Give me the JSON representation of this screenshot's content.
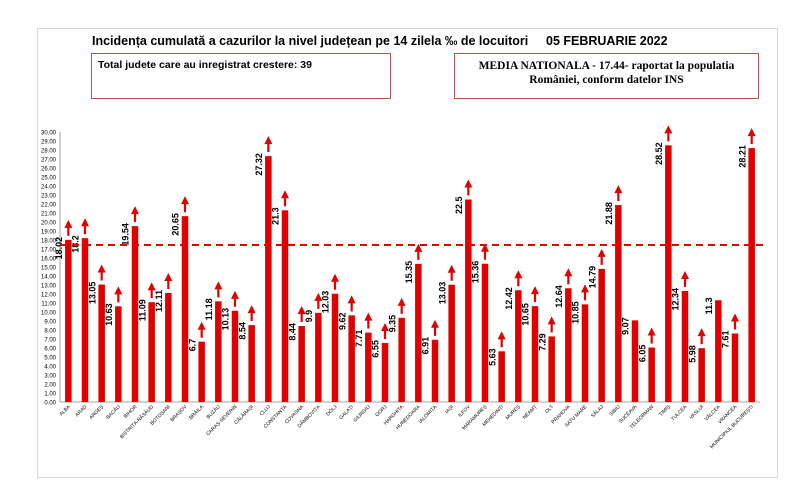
{
  "title": "Incidența cumulată a cazurilor la nivel județean pe 14 zilela ‰ de locuitori",
  "date": "05 FEBRUARIE 2022",
  "box_left": "Total judete care au inregistrat crestere: 39",
  "box_right_line1": "MEDIA NATIONALA - 17.44-  raportat la populatia",
  "box_right_line2": "României, conform datelor INS",
  "colors": {
    "bar": "#e00000",
    "reference_line": "#e00000",
    "box_border": "#c0504d"
  },
  "chart_data": {
    "type": "bar",
    "categories": [
      "ALBA",
      "ARAD",
      "ARGEȘ",
      "BACĂU",
      "BIHOR",
      "BISTRIȚA-NĂSĂUD",
      "BOTOȘANI",
      "BRAȘOV",
      "BRĂILA",
      "BUZĂU",
      "CARAȘ-SEVERIN",
      "CĂLĂRAȘI",
      "CLUJ",
      "CONSTANȚA",
      "COVASNA",
      "DÂMBOVIȚA",
      "DOLJ",
      "GALAȚI",
      "GIURGIU",
      "GORJ",
      "HARGHITA",
      "HUNEDOARA",
      "IALOMIȚA",
      "IAȘI",
      "ILFOV",
      "MARAMUREȘ",
      "MEHEDINȚI",
      "MUREȘ",
      "NEAMȚ",
      "OLT",
      "PRAHOVA",
      "SATU MARE",
      "SĂLAJ",
      "SIBIU",
      "SUCEAVA",
      "TELEORMAN",
      "TIMIȘ",
      "TULCEA",
      "VASLUI",
      "VÂLCEA",
      "VRANCEA",
      "MUNICIPIUL BUCUREȘTI"
    ],
    "values": [
      18.02,
      18.2,
      13.05,
      10.63,
      19.54,
      11.09,
      12.11,
      20.65,
      6.7,
      11.18,
      10.13,
      8.54,
      27.32,
      21.3,
      8.44,
      9.9,
      12.03,
      9.62,
      7.71,
      6.55,
      9.35,
      15.35,
      6.91,
      13.03,
      22.5,
      15.36,
      5.63,
      12.42,
      10.65,
      7.29,
      12.64,
      10.85,
      14.79,
      21.88,
      9.07,
      6.05,
      28.52,
      12.34,
      5.98,
      11.3,
      7.61,
      28.21
    ],
    "labels": [
      "18.02",
      "18.2",
      "13.05",
      "10.63",
      "19.54",
      "11.09",
      "12.11",
      "20.65",
      "6.7",
      "11.18",
      "10.13",
      "8.54",
      "27.32",
      "21.3",
      "8.44",
      "9.9",
      "12.03",
      "9.62",
      "7.71",
      "6.55",
      "9.35",
      "15.35",
      "6.91",
      "13.03",
      "22.5",
      "15.36",
      "5.63",
      "12.42",
      "10.65",
      "7.29",
      "12.64",
      "10.85",
      "14.79",
      "21.88",
      "9.07",
      "6.05",
      "28.52",
      "12.34",
      "5.98",
      "11.3",
      "7.61",
      "28.21"
    ],
    "trend": [
      "up",
      "up",
      "up",
      "up",
      "up",
      "up",
      "up",
      "up",
      "up",
      "up",
      "up",
      "up",
      "up",
      "up",
      "up",
      "up",
      "up",
      "up",
      "up",
      "up",
      "up",
      "up",
      "up",
      "up",
      "up",
      "up",
      "up",
      "up",
      "up",
      "up",
      "up",
      "up",
      "up",
      "up",
      "none",
      "up",
      "up",
      "up",
      "up",
      "none",
      "up",
      "up"
    ],
    "reference_line": 17.44,
    "ylim": [
      0,
      30
    ],
    "yticks": [
      "0.00",
      "1.00",
      "2.00",
      "3.00",
      "4.00",
      "5.00",
      "6.00",
      "7.00",
      "8.00",
      "9.00",
      "10.00",
      "11.00",
      "12.00",
      "13.00",
      "14.00",
      "15.00",
      "16.00",
      "17.00",
      "18.00",
      "19.00",
      "20.00",
      "21.00",
      "22.00",
      "23.00",
      "24.00",
      "25.00",
      "26.00",
      "27.00",
      "28.00",
      "29.00",
      "30.00"
    ],
    "grid": false,
    "legend": "none"
  }
}
